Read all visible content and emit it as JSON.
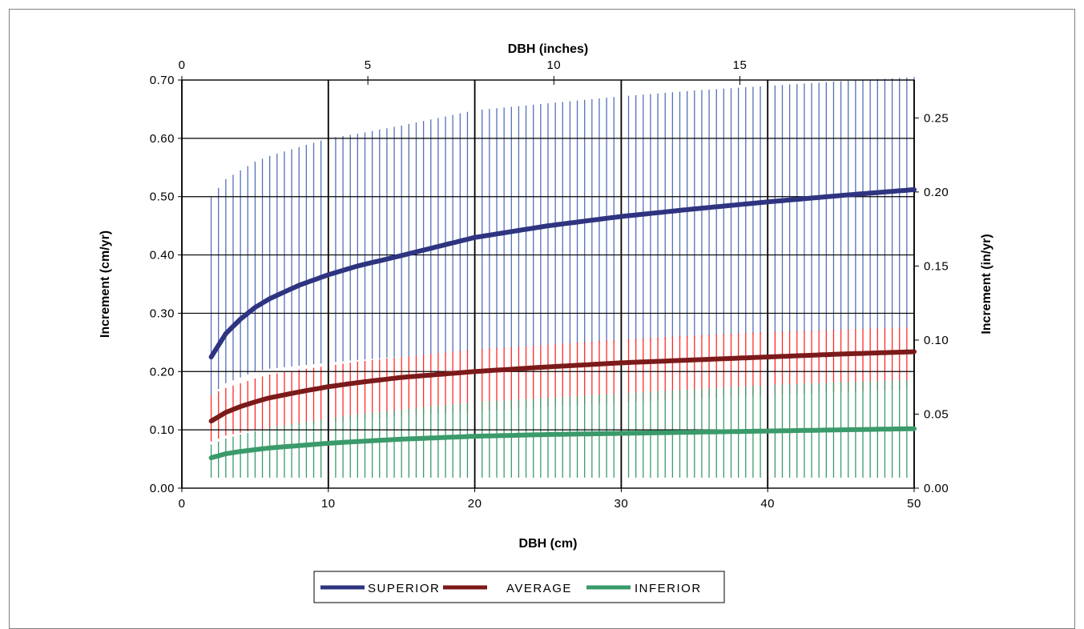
{
  "chart_data": {
    "type": "line",
    "x_title": "DBH (cm)",
    "x2_title": "DBH (inches)",
    "y_title": "Increment (cm/yr)",
    "y2_title": "Increment (in/yr)",
    "xlim": [
      0,
      50
    ],
    "x2lim": [
      0,
      19.685
    ],
    "ylim": [
      0,
      0.7
    ],
    "y2lim": [
      0,
      0.2756
    ],
    "x_ticks": [
      "0",
      "10",
      "20",
      "30",
      "40",
      "50"
    ],
    "x2_ticks": [
      "0",
      "5",
      "10",
      "15"
    ],
    "y_ticks": [
      "0.00",
      "0.10",
      "0.20",
      "0.30",
      "0.40",
      "0.50",
      "0.60",
      "0.70"
    ],
    "y2_ticks": [
      "0.00",
      "0.05",
      "0.10",
      "0.15",
      "0.20",
      "0.25"
    ],
    "grid": true,
    "legend_position": "bottom",
    "series": [
      {
        "name": "SUPERIOR",
        "color": "#2e3480",
        "x": [
          2,
          3,
          4,
          5,
          6,
          8,
          10,
          12,
          15,
          20,
          25,
          30,
          35,
          40,
          45,
          50
        ],
        "values": [
          0.225,
          0.265,
          0.29,
          0.31,
          0.325,
          0.348,
          0.366,
          0.381,
          0.399,
          0.43,
          0.45,
          0.466,
          0.479,
          0.491,
          0.502,
          0.512
        ],
        "band_color": "#5470b8",
        "band_low": [
          0.16,
          0.18,
          0.19,
          0.2,
          0.205,
          0.21,
          0.215,
          0.22,
          0.225,
          0.235,
          0.245,
          0.25,
          0.258,
          0.265,
          0.27,
          0.275
        ],
        "band_high": [
          0.5,
          0.53,
          0.545,
          0.56,
          0.57,
          0.585,
          0.6,
          0.608,
          0.622,
          0.648,
          0.66,
          0.672,
          0.682,
          0.69,
          0.698,
          0.705
        ]
      },
      {
        "name": "AVERAGE",
        "color": "#7b1a1a",
        "x": [
          2,
          3,
          4,
          5,
          6,
          8,
          10,
          12,
          15,
          20,
          25,
          30,
          35,
          40,
          45,
          50
        ],
        "values": [
          0.115,
          0.13,
          0.14,
          0.148,
          0.155,
          0.165,
          0.174,
          0.181,
          0.19,
          0.2,
          0.208,
          0.215,
          0.22,
          0.225,
          0.23,
          0.234
        ],
        "band_color": "#ff2a2a",
        "band_low": [
          0.08,
          0.09,
          0.095,
          0.1,
          0.102,
          0.108,
          0.112,
          0.118,
          0.124,
          0.132,
          0.14,
          0.147,
          0.153,
          0.16,
          0.165,
          0.17
        ],
        "band_high": [
          0.16,
          0.172,
          0.18,
          0.188,
          0.195,
          0.203,
          0.21,
          0.217,
          0.225,
          0.238,
          0.246,
          0.255,
          0.262,
          0.268,
          0.272,
          0.276
        ]
      },
      {
        "name": "INFERIOR",
        "color": "#3a9a6a",
        "x": [
          2,
          3,
          4,
          5,
          6,
          8,
          10,
          12,
          15,
          20,
          25,
          30,
          35,
          40,
          45,
          50
        ],
        "values": [
          0.052,
          0.059,
          0.063,
          0.066,
          0.069,
          0.073,
          0.077,
          0.08,
          0.084,
          0.089,
          0.092,
          0.094,
          0.096,
          0.098,
          0.1,
          0.102
        ],
        "band_color": "#3a9a6a",
        "band_low": [
          0.018,
          0.018,
          0.018,
          0.018,
          0.018,
          0.018,
          0.018,
          0.018,
          0.018,
          0.018,
          0.018,
          0.018,
          0.018,
          0.018,
          0.018,
          0.018
        ],
        "band_high": [
          0.075,
          0.085,
          0.092,
          0.098,
          0.104,
          0.112,
          0.12,
          0.127,
          0.135,
          0.148,
          0.155,
          0.163,
          0.17,
          0.177,
          0.182,
          0.186
        ]
      }
    ]
  }
}
